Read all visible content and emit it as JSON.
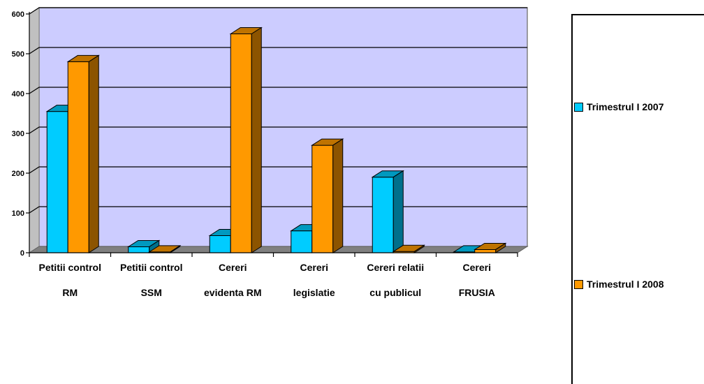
{
  "chart_data": {
    "type": "bar",
    "categories": [
      [
        "Petitii control",
        "RM"
      ],
      [
        "Petitii control",
        "SSM"
      ],
      [
        "Cereri",
        "evidenta RM"
      ],
      [
        "Cereri",
        "legislatie"
      ],
      [
        "Cereri relatii",
        "cu publicul"
      ],
      [
        "Cereri",
        "FRUSIA"
      ]
    ],
    "series": [
      {
        "name": "Trimestrul I 2007",
        "color": "#00ccff",
        "values": [
          355,
          15,
          43,
          55,
          190,
          2
        ]
      },
      {
        "name": "Trimestrul I 2008",
        "color": "#ff9900",
        "values": [
          480,
          2,
          550,
          270,
          3,
          8
        ]
      }
    ],
    "yticks": [
      "0",
      "100",
      "200",
      "300",
      "400",
      "500",
      "600"
    ],
    "ylim": [
      0,
      600
    ],
    "grid": true,
    "legend_position": "right",
    "plot_background": "#ccccff",
    "floor_color": "#808080"
  }
}
